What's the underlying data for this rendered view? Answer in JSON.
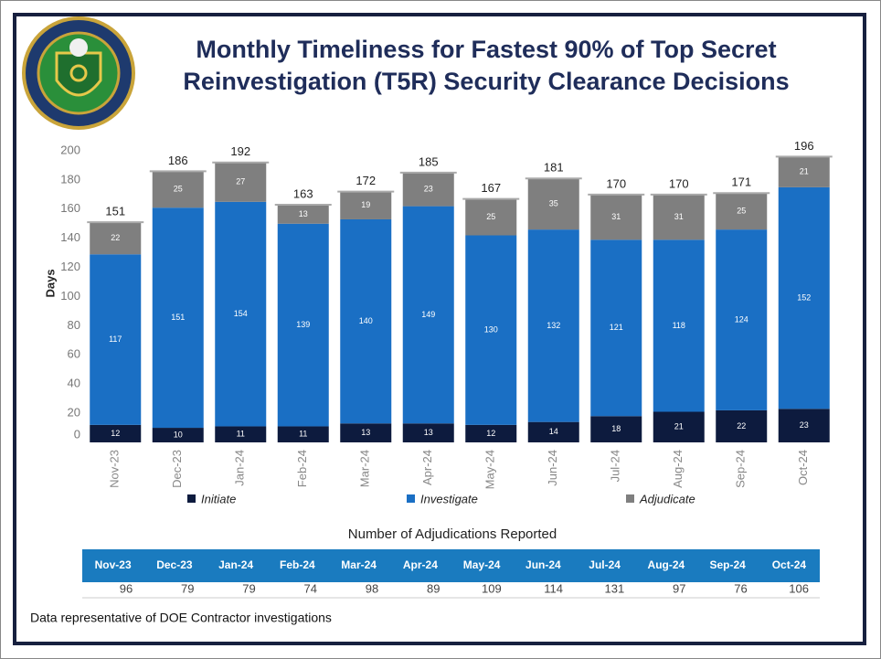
{
  "chart_data": {
    "type": "bar",
    "stacked": true,
    "title": [
      "Monthly Timeliness for Fastest 90% of Top Secret",
      "Reinvestigation (T5R) Security Clearance Decisions"
    ],
    "y_label": "Days",
    "categories": [
      "Nov-23",
      "Dec-23",
      "Jan-24",
      "Feb-24",
      "Mar-24",
      "Apr-24",
      "May-24",
      "Jun-24",
      "Jul-24",
      "Aug-24",
      "Sep-24",
      "Oct-24"
    ],
    "series": [
      {
        "name": "Initiate",
        "color": "#0d1b3e",
        "values": [
          12,
          10,
          11,
          11,
          13,
          13,
          12,
          14,
          18,
          21,
          22,
          23
        ]
      },
      {
        "name": "Investigate",
        "color": "#1a6fc4",
        "values": [
          117,
          151,
          154,
          139,
          140,
          149,
          130,
          132,
          121,
          118,
          124,
          152
        ]
      },
      {
        "name": "Adjudicate",
        "color": "#7f7f7f",
        "values": [
          22,
          25,
          27,
          13,
          19,
          23,
          25,
          35,
          31,
          31,
          25,
          21
        ]
      }
    ],
    "totals": [
      151,
      186,
      192,
      163,
      172,
      185,
      167,
      181,
      170,
      170,
      171,
      196
    ],
    "ylim": [
      0,
      200
    ],
    "yticks": [
      0,
      20,
      40,
      60,
      80,
      100,
      120,
      140,
      160,
      180,
      200
    ],
    "grid": false,
    "legend": "bottom"
  },
  "table": {
    "title": "Number of Adjudications Reported",
    "header": [
      "Nov-23",
      "Dec-23",
      "Jan-24",
      "Feb-24",
      "Mar-24",
      "Apr-24",
      "May-24",
      "Jun-24",
      "Jul-24",
      "Aug-24",
      "Sep-24",
      "Oct-24"
    ],
    "rows": [
      [
        "96",
        "79",
        "79",
        "74",
        "98",
        "89",
        "109",
        "114",
        "131",
        "97",
        "76",
        "106"
      ]
    ]
  },
  "footer": "Data representative of DOE Contractor investigations"
}
